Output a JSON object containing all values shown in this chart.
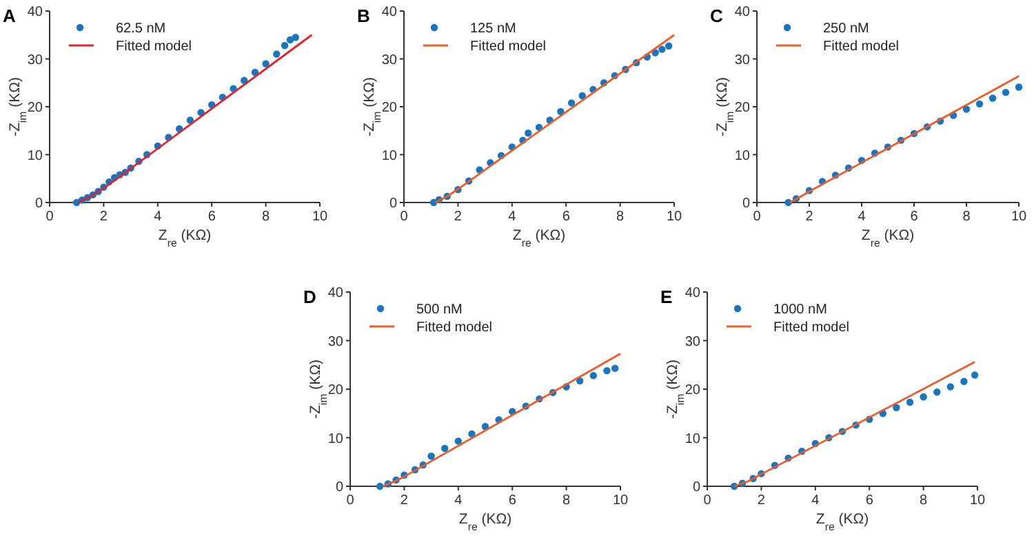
{
  "chart_data": [
    {
      "type": "scatter",
      "title": "A",
      "xlabel": "Z$_{re}$ (KΩ)",
      "ylabel": "-Z$_{im}$ (KΩ)",
      "xlim": [
        0,
        10
      ],
      "ylim": [
        0,
        40
      ],
      "xticks": [
        0,
        2,
        4,
        6,
        8,
        10
      ],
      "yticks": [
        0,
        10,
        20,
        30,
        40
      ],
      "grid": false,
      "legend": "top left",
      "series": [
        {
          "name": "62.5 nM",
          "marker": "circle",
          "color": "#1a75bc",
          "x": [
            1.0,
            1.2,
            1.4,
            1.6,
            1.8,
            2.0,
            2.2,
            2.4,
            2.6,
            2.8,
            3.0,
            3.3,
            3.6,
            4.0,
            4.4,
            4.8,
            5.2,
            5.6,
            6.0,
            6.4,
            6.8,
            7.2,
            7.6,
            8.0,
            8.4,
            8.7,
            8.9,
            9.1
          ],
          "values": [
            0,
            0.5,
            1,
            1.6,
            2.3,
            3.2,
            4.3,
            5.2,
            5.8,
            6.3,
            7.2,
            8.6,
            10,
            11.8,
            13.6,
            15.4,
            17.2,
            18.8,
            20.4,
            22,
            23.8,
            25.5,
            27.2,
            29,
            31,
            32.8,
            34,
            34.5
          ]
        },
        {
          "name": "Fitted model",
          "type": "line",
          "color": "#e8202a",
          "x": [
            1.05,
            1.5,
            2,
            2.5,
            3,
            9.7
          ],
          "values": [
            0,
            1.2,
            3,
            5,
            7.1,
            35
          ]
        }
      ]
    },
    {
      "type": "scatter",
      "title": "B",
      "xlabel": "Z$_{re}$ (KΩ)",
      "ylabel": "-Z$_{im}$ (KΩ)",
      "xlim": [
        0,
        10
      ],
      "ylim": [
        0,
        40
      ],
      "xticks": [
        0,
        2,
        4,
        6,
        8,
        10
      ],
      "yticks": [
        0,
        10,
        20,
        30,
        40
      ],
      "grid": false,
      "legend": "top left",
      "series": [
        {
          "name": "125 nM",
          "marker": "circle",
          "color": "#1a75bc",
          "x": [
            1.1,
            1.3,
            1.6,
            2.0,
            2.4,
            2.8,
            3.2,
            3.6,
            4.0,
            4.4,
            4.6,
            5.0,
            5.4,
            5.8,
            6.2,
            6.6,
            7.0,
            7.4,
            7.8,
            8.2,
            8.6,
            9.0,
            9.3,
            9.55,
            9.8
          ],
          "values": [
            0,
            0.6,
            1.3,
            2.7,
            4.5,
            6.8,
            8.3,
            9.8,
            11.6,
            13,
            14.5,
            15.7,
            17.2,
            19,
            20.8,
            22.3,
            23.6,
            25,
            26.5,
            27.8,
            29.2,
            30.4,
            31.3,
            32,
            32.7
          ]
        },
        {
          "name": "Fitted model",
          "type": "line",
          "color": "#f05a28",
          "x": [
            1.15,
            1.6,
            2,
            10
          ],
          "values": [
            0,
            1.3,
            2.8,
            35
          ]
        }
      ]
    },
    {
      "type": "scatter",
      "title": "C",
      "xlabel": "Z$_{re}$ (KΩ)",
      "ylabel": "-Z$_{im}$ (KΩ)",
      "xlim": [
        0,
        10
      ],
      "ylim": [
        0,
        40
      ],
      "xticks": [
        0,
        2,
        4,
        6,
        8,
        10
      ],
      "yticks": [
        0,
        10,
        20,
        30,
        40
      ],
      "grid": false,
      "legend": "top left",
      "series": [
        {
          "name": "250 nM",
          "marker": "circle",
          "color": "#1a75bc",
          "x": [
            1.2,
            1.5,
            2.0,
            2.5,
            3.0,
            3.5,
            4.0,
            4.5,
            5.0,
            5.5,
            6.0,
            6.5,
            7.0,
            7.5,
            8.0,
            8.5,
            9.0,
            9.5,
            10
          ],
          "values": [
            0,
            0.8,
            2.5,
            4.4,
            5.7,
            7.2,
            8.8,
            10.3,
            11.6,
            13,
            14.4,
            15.8,
            17,
            18.2,
            19.5,
            20.6,
            21.8,
            23,
            24.1
          ]
        },
        {
          "name": "Fitted model",
          "type": "line",
          "color": "#f05a28",
          "x": [
            1.25,
            1.6,
            2,
            10
          ],
          "values": [
            0,
            1,
            2.3,
            26.4
          ]
        }
      ]
    },
    {
      "type": "scatter",
      "title": "D",
      "xlabel": "Z$_{re}$ (KΩ)",
      "ylabel": "-Z$_{im}$ (KΩ)",
      "xlim": [
        0,
        10
      ],
      "ylim": [
        0,
        40
      ],
      "xticks": [
        0,
        2,
        4,
        6,
        8,
        10
      ],
      "yticks": [
        0,
        10,
        20,
        30,
        40
      ],
      "grid": false,
      "legend": "top left",
      "series": [
        {
          "name": "500 nM",
          "marker": "circle",
          "color": "#1a75bc",
          "x": [
            1.1,
            1.4,
            1.7,
            2.0,
            2.4,
            2.7,
            3.0,
            3.5,
            4.0,
            4.5,
            5.0,
            5.5,
            6.0,
            6.5,
            7.0,
            7.5,
            8.0,
            8.5,
            9.0,
            9.5,
            9.8
          ],
          "values": [
            0,
            0.5,
            1.3,
            2.3,
            3.4,
            4.4,
            6.2,
            7.8,
            9.3,
            10.8,
            12.3,
            13.7,
            15.4,
            16.5,
            18,
            19.3,
            20.5,
            21.7,
            22.8,
            23.8,
            24.3
          ]
        },
        {
          "name": "Fitted model",
          "type": "line",
          "color": "#f05a28",
          "x": [
            1.2,
            1.6,
            2,
            10
          ],
          "values": [
            0,
            0.9,
            2,
            27.3
          ]
        }
      ]
    },
    {
      "type": "scatter",
      "title": "E",
      "xlabel": "Z$_{re}$ (KΩ)",
      "ylabel": "-Z$_{im}$ (KΩ)",
      "xlim": [
        0,
        10
      ],
      "ylim": [
        0,
        40
      ],
      "xticks": [
        0,
        2,
        4,
        6,
        8,
        10
      ],
      "yticks": [
        0,
        10,
        20,
        30,
        40
      ],
      "grid": false,
      "legend": "top left",
      "series": [
        {
          "name": "1000 nM",
          "marker": "circle",
          "color": "#1a75bc",
          "x": [
            1.0,
            1.3,
            1.7,
            2.0,
            2.5,
            3.0,
            3.5,
            4.0,
            4.5,
            5.0,
            5.5,
            6.0,
            6.5,
            7.0,
            7.5,
            8.0,
            8.5,
            9.0,
            9.5,
            9.9
          ],
          "values": [
            0,
            0.6,
            1.6,
            2.6,
            4.3,
            5.8,
            7.2,
            8.8,
            10,
            11.3,
            12.6,
            13.8,
            15,
            16.2,
            17.3,
            18.4,
            19.4,
            20.5,
            21.6,
            22.9
          ]
        },
        {
          "name": "Fitted model",
          "type": "line",
          "color": "#f05a28",
          "x": [
            1.0,
            1.5,
            2,
            9.9
          ],
          "values": [
            0,
            1,
            2.5,
            25.6
          ]
        }
      ]
    }
  ]
}
